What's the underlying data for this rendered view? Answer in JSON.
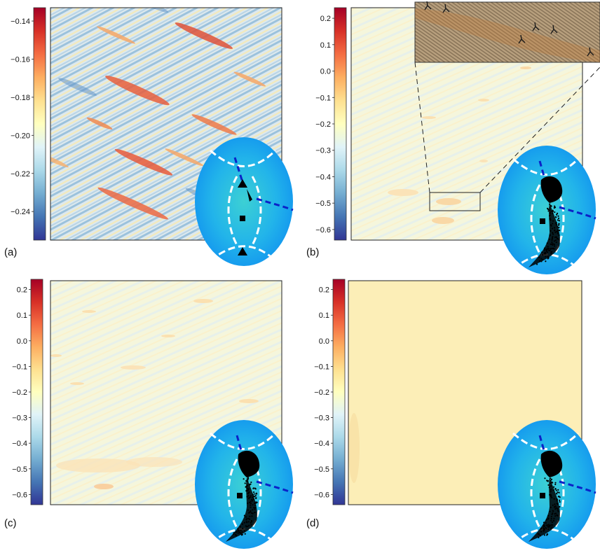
{
  "panels": [
    {
      "label": "(a)",
      "colorbar_ticks": [
        "−0.14",
        "−0.16",
        "−0.18",
        "−0.20",
        "−0.22",
        "−0.24"
      ],
      "colorbar_range": [
        -0.255,
        -0.133
      ]
    },
    {
      "label": "(b)",
      "colorbar_ticks": [
        "0.2",
        "0.1",
        "0.0",
        "−0.1",
        "−0.2",
        "−0.3",
        "−0.4",
        "−0.5",
        "−0.6"
      ],
      "colorbar_range": [
        -0.64,
        0.24
      ]
    },
    {
      "label": "(c)",
      "colorbar_ticks": [
        "0.2",
        "0.1",
        "0.0",
        "−0.1",
        "−0.2",
        "−0.3",
        "−0.4",
        "−0.5",
        "−0.6"
      ],
      "colorbar_range": [
        -0.64,
        0.24
      ]
    },
    {
      "label": "(d)",
      "colorbar_ticks": [
        "0.2",
        "0.1",
        "0.0",
        "−0.1",
        "−0.2",
        "−0.3",
        "−0.4",
        "−0.5",
        "−0.6"
      ],
      "colorbar_range": [
        -0.64,
        0.24
      ]
    }
  ],
  "colors": {
    "colormap": [
      "#313695",
      "#4575b4",
      "#74add1",
      "#abd9e9",
      "#e0f3f8",
      "#ffffbf",
      "#fee090",
      "#fdae61",
      "#f46d43",
      "#d73027",
      "#a50026"
    ],
    "ellipse_gradient": [
      "#37c8d8",
      "#1aa3ee"
    ],
    "dashed_line": "#ffffff",
    "dashed_line_blue": "#0b22c8",
    "markers": "#000000"
  },
  "icons": [
    "triangle-marker",
    "square-marker"
  ]
}
